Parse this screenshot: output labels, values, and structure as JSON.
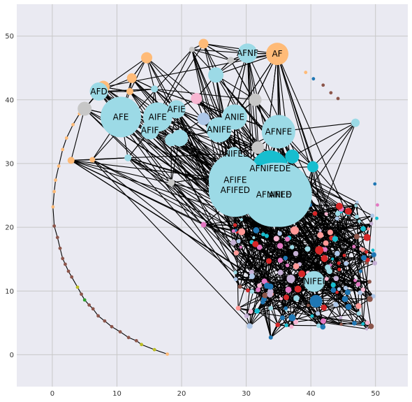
{
  "chart_data": {
    "type": "scatter",
    "title": "",
    "xlabel": "",
    "ylabel": "",
    "xlim": [
      -5.5,
      55
    ],
    "ylim": [
      -5,
      55
    ],
    "xticks": [
      0,
      10,
      20,
      30,
      40,
      50
    ],
    "yticks": [
      0,
      10,
      20,
      30,
      40,
      50
    ],
    "grid": true,
    "colors": {
      "background": "#eaeaf2",
      "grid": "#c8c8c8",
      "edge": "#000000",
      "lightblue": "#9cdae6",
      "teal": "#17becf",
      "orange": "#ffbb78",
      "gray": "#c7c7c7",
      "red": "#d62728",
      "blue": "#1f77b4",
      "brown": "#8c564b",
      "pink": "#f7b6d2",
      "purple": "#c5b0d5",
      "periwinkle": "#aec7e8",
      "olive": "#bcbd22",
      "green": "#2ca02c",
      "salmon": "#ff9896",
      "magenta": "#e377c2"
    },
    "labeled_nodes": [
      {
        "label": "AF",
        "x": 34.8,
        "y": 47.2,
        "size": 16,
        "color": "orange"
      },
      {
        "label": "AFNF",
        "x": 30.2,
        "y": 47.3,
        "size": 14,
        "color": "lightblue"
      },
      {
        "label": "AFD",
        "x": 7.2,
        "y": 41.3,
        "size": 13,
        "color": "lightblue"
      },
      {
        "label": "AFE",
        "x": 10.6,
        "y": 37.3,
        "size": 29,
        "color": "lightblue"
      },
      {
        "label": "AIFE",
        "x": 16.3,
        "y": 37.3,
        "size": 21,
        "color": "lightblue"
      },
      {
        "label": "AFIE",
        "x": 19.2,
        "y": 38.5,
        "size": 13,
        "color": "lightblue"
      },
      {
        "label": "AFIF",
        "x": 15.1,
        "y": 35.2,
        "size": 13,
        "color": "lightblue"
      },
      {
        "label": "ANIE",
        "x": 28.2,
        "y": 37.3,
        "size": 18,
        "color": "lightblue"
      },
      {
        "label": "ANIFE",
        "x": 25.8,
        "y": 35.3,
        "size": 18,
        "color": "lightblue"
      },
      {
        "label": "AFNFE",
        "x": 35.0,
        "y": 35.0,
        "size": 24,
        "color": "lightblue"
      },
      {
        "label": "ANIFED",
        "x": 28.1,
        "y": 31.5,
        "size": 10,
        "color": "lightblue"
      },
      {
        "label": "AFNIFEDE",
        "x": 33.7,
        "y": 29.2,
        "size": 26,
        "color": "teal"
      },
      {
        "label": "AFIFE",
        "x": 28.3,
        "y": 27.4,
        "size": 38,
        "color": "lightblue"
      },
      {
        "label": "AFIFED",
        "x": 28.3,
        "y": 25.8,
        "size": 38,
        "color": "lightblue"
      },
      {
        "label": "AFNIFED",
        "x": 34.3,
        "y": 25.1,
        "size": 46,
        "color": "lightblue"
      },
      {
        "label": "ANFE",
        "x": 35.2,
        "y": 25.1,
        "size": 46,
        "color": "lightblue"
      },
      {
        "label": "NIFEI",
        "x": 40.5,
        "y": 11.5,
        "size": 15,
        "color": "lightblue"
      }
    ],
    "extra_nodes": [
      {
        "x": 5.0,
        "y": 38.6,
        "size": 10,
        "color": "gray"
      },
      {
        "x": 7.9,
        "y": 42.0,
        "size": 9,
        "color": "orange"
      },
      {
        "x": 14.6,
        "y": 46.6,
        "size": 8,
        "color": "orange"
      },
      {
        "x": 12.3,
        "y": 43.4,
        "size": 7,
        "color": "orange"
      },
      {
        "x": 23.4,
        "y": 48.8,
        "size": 7,
        "color": "orange"
      },
      {
        "x": 25.3,
        "y": 43.9,
        "size": 11,
        "color": "lightblue"
      },
      {
        "x": 31.4,
        "y": 40.0,
        "size": 9,
        "color": "gray"
      },
      {
        "x": 22.3,
        "y": 40.2,
        "size": 8,
        "color": "pink"
      },
      {
        "x": 23.4,
        "y": 37.0,
        "size": 9,
        "color": "periwinkle"
      },
      {
        "x": 19.7,
        "y": 34.0,
        "size": 12,
        "color": "lightblue"
      },
      {
        "x": 18.4,
        "y": 33.7,
        "size": 9,
        "color": "lightblue"
      },
      {
        "x": 31.8,
        "y": 32.5,
        "size": 9,
        "color": "gray"
      },
      {
        "x": 37.1,
        "y": 31.1,
        "size": 10,
        "color": "teal"
      },
      {
        "x": 40.3,
        "y": 29.5,
        "size": 8,
        "color": "teal"
      },
      {
        "x": 46.9,
        "y": 36.4,
        "size": 6,
        "color": "lightblue"
      },
      {
        "x": 40.8,
        "y": 8.4,
        "size": 9,
        "color": "blue"
      },
      {
        "x": 2.9,
        "y": 30.5,
        "size": 5,
        "color": "orange"
      },
      {
        "x": 6.2,
        "y": 30.6,
        "size": 4,
        "color": "orange"
      },
      {
        "x": 11.7,
        "y": 30.9,
        "size": 5,
        "color": "lightblue"
      },
      {
        "x": 18.4,
        "y": 27.0,
        "size": 5,
        "color": "gray"
      },
      {
        "x": 21.6,
        "y": 47.9,
        "size": 4,
        "color": "gray"
      },
      {
        "x": 27.6,
        "y": 46.2,
        "size": 5,
        "color": "gray"
      },
      {
        "x": 15.8,
        "y": 41.7,
        "size": 5,
        "color": "lightblue"
      },
      {
        "x": 12.0,
        "y": 41.3,
        "size": 5,
        "color": "orange"
      },
      {
        "x": 36.9,
        "y": 11.9,
        "size": 6,
        "color": "purple"
      },
      {
        "x": 37.5,
        "y": 19.5,
        "size": 6,
        "color": "salmon"
      },
      {
        "x": 41.3,
        "y": 16.4,
        "size": 6,
        "color": "red"
      },
      {
        "x": 42.1,
        "y": 15.1,
        "size": 5,
        "color": "red"
      },
      {
        "x": 38.6,
        "y": 12.7,
        "size": 5,
        "color": "red"
      },
      {
        "x": 38.0,
        "y": 10.3,
        "size": 5,
        "color": "red"
      },
      {
        "x": 44.4,
        "y": 23.3,
        "size": 5,
        "color": "red"
      },
      {
        "x": 45.8,
        "y": 22.5,
        "size": 5,
        "color": "red"
      },
      {
        "x": 48.7,
        "y": 18.4,
        "size": 5,
        "color": "red"
      },
      {
        "x": 37.1,
        "y": 5.8,
        "size": 5,
        "color": "blue"
      },
      {
        "x": 45.7,
        "y": 9.8,
        "size": 4,
        "color": "blue"
      },
      {
        "x": 48.2,
        "y": 15.2,
        "size": 4,
        "color": "blue"
      },
      {
        "x": 29.3,
        "y": 19.3,
        "size": 5,
        "color": "salmon"
      },
      {
        "x": 28.0,
        "y": 17.6,
        "size": 4,
        "color": "purple"
      },
      {
        "x": 35.3,
        "y": 12.9,
        "size": 4,
        "color": "purple"
      },
      {
        "x": 30.9,
        "y": 12.3,
        "size": 4,
        "color": "periwinkle"
      },
      {
        "x": 39.5,
        "y": 16.6,
        "size": 4,
        "color": "lightblue"
      },
      {
        "x": 43.0,
        "y": 19.2,
        "size": 4,
        "color": "salmon"
      },
      {
        "x": 23.4,
        "y": 20.4,
        "size": 4,
        "color": "magenta"
      },
      {
        "x": 33.5,
        "y": 14.7,
        "size": 4,
        "color": "red"
      },
      {
        "x": 42.9,
        "y": 13.1,
        "size": 4,
        "color": "lightblue"
      },
      {
        "x": 36.2,
        "y": 9.0,
        "size": 4,
        "color": "red"
      },
      {
        "x": 33.8,
        "y": 2.7,
        "size": 3,
        "color": "blue"
      },
      {
        "x": 37.0,
        "y": 4.4,
        "size": 3,
        "color": "pink"
      }
    ],
    "arc_nodes": [
      {
        "x": 0.3,
        "y": 20.2,
        "color": "brown"
      },
      {
        "x": 0.8,
        "y": 18.4,
        "color": "brown"
      },
      {
        "x": 1.2,
        "y": 16.7,
        "color": "brown"
      },
      {
        "x": 1.6,
        "y": 15.1,
        "color": "brown"
      },
      {
        "x": 2.0,
        "y": 14.2,
        "color": "brown"
      },
      {
        "x": 2.5,
        "y": 13.1,
        "color": "brown"
      },
      {
        "x": 3.0,
        "y": 12.2,
        "color": "brown"
      },
      {
        "x": 3.9,
        "y": 10.6,
        "color": "olive"
      },
      {
        "x": 4.5,
        "y": 9.5,
        "color": "brown"
      },
      {
        "x": 5.0,
        "y": 8.6,
        "color": "green"
      },
      {
        "x": 5.7,
        "y": 7.8,
        "color": "brown"
      },
      {
        "x": 6.3,
        "y": 7.2,
        "color": "brown"
      },
      {
        "x": 7.1,
        "y": 6.1,
        "color": "brown"
      },
      {
        "x": 8.1,
        "y": 5.3,
        "color": "brown"
      },
      {
        "x": 9.2,
        "y": 4.4,
        "color": "brown"
      },
      {
        "x": 10.5,
        "y": 3.6,
        "color": "brown"
      },
      {
        "x": 11.8,
        "y": 2.7,
        "color": "brown"
      },
      {
        "x": 13.0,
        "y": 2.2,
        "color": "brown"
      },
      {
        "x": 13.8,
        "y": 1.6,
        "color": "olive"
      },
      {
        "x": 15.8,
        "y": 0.8,
        "color": "olive"
      },
      {
        "x": 17.8,
        "y": 0.1,
        "color": "orange"
      },
      {
        "x": 0.1,
        "y": 23.2,
        "color": "orange"
      },
      {
        "x": 0.3,
        "y": 25.6,
        "color": "orange"
      },
      {
        "x": 0.5,
        "y": 27.4,
        "color": "orange"
      },
      {
        "x": 1.0,
        "y": 29.6,
        "color": "orange"
      },
      {
        "x": 1.6,
        "y": 32.2,
        "color": "orange"
      },
      {
        "x": 2.2,
        "y": 34.0,
        "color": "orange"
      },
      {
        "x": 3.2,
        "y": 36.1,
        "color": "orange"
      },
      {
        "x": 4.2,
        "y": 37.8,
        "color": "orange"
      },
      {
        "x": 39.2,
        "y": 44.3,
        "color": "orange"
      },
      {
        "x": 40.4,
        "y": 43.3,
        "color": "blue"
      },
      {
        "x": 41.9,
        "y": 42.3,
        "color": "brown"
      },
      {
        "x": 43.1,
        "y": 41.1,
        "color": "brown"
      },
      {
        "x": 44.2,
        "y": 40.2,
        "color": "brown"
      },
      {
        "x": 49.9,
        "y": 26.8,
        "color": "blue"
      },
      {
        "x": 50.3,
        "y": 23.5,
        "color": "magenta"
      },
      {
        "x": 50.2,
        "y": 21.4,
        "color": "teal"
      },
      {
        "x": 49.6,
        "y": 16.4,
        "color": "teal"
      },
      {
        "x": 48.6,
        "y": 14.4,
        "color": "brown"
      },
      {
        "x": 47.7,
        "y": 13.1,
        "color": "blue"
      }
    ],
    "cluster": {
      "n": 150,
      "x_range": [
        28,
        50
      ],
      "y_range": [
        4,
        24
      ],
      "palette": [
        "red",
        "blue",
        "teal",
        "lightblue",
        "magenta",
        "salmon",
        "purple",
        "pink",
        "brown",
        "periwinkle"
      ]
    }
  }
}
